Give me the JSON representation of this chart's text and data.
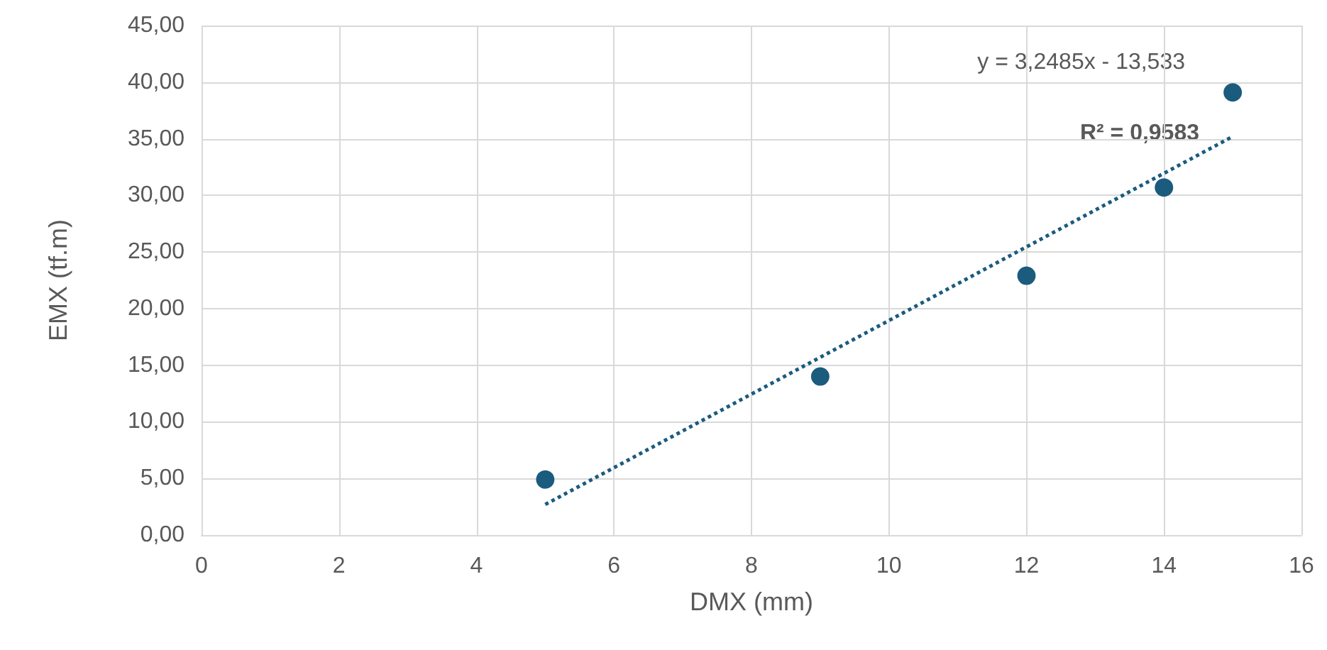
{
  "chart_data": {
    "type": "scatter",
    "xlabel": "DMX (mm)",
    "ylabel": "EMX (tf.m)",
    "x": [
      5,
      9,
      12,
      14,
      15
    ],
    "series": [
      {
        "color": "#1b5b7e",
        "values": [
          4.9,
          14.0,
          22.9,
          30.7,
          39.1
        ],
        "marker": "circle"
      },
      {
        "type": "line",
        "color": "#1b5b7e",
        "x": [
          5,
          15
        ],
        "values": [
          2.7,
          35.2
        ],
        "line_style": "dotted",
        "marker": "none"
      }
    ],
    "xlim": [
      0,
      16
    ],
    "xticks": [
      0,
      2,
      4,
      6,
      8,
      10,
      12,
      14,
      16
    ],
    "ylim": [
      0,
      45
    ],
    "yticks": [
      {
        "value": 0,
        "label": "0,00"
      },
      {
        "value": 5,
        "label": "5,00"
      },
      {
        "value": 10,
        "label": "10,00"
      },
      {
        "value": 15,
        "label": "15,00"
      },
      {
        "value": 20,
        "label": "20,00"
      },
      {
        "value": 25,
        "label": "25,00"
      },
      {
        "value": 30,
        "label": "30,00"
      },
      {
        "value": 35,
        "label": "35,00"
      },
      {
        "value": 40,
        "label": "40,00"
      },
      {
        "value": 45,
        "label": "45,00"
      }
    ],
    "annotations": [
      "y = 3,2485x - 13,533",
      "R² = 0,9583"
    ],
    "grid": true
  }
}
